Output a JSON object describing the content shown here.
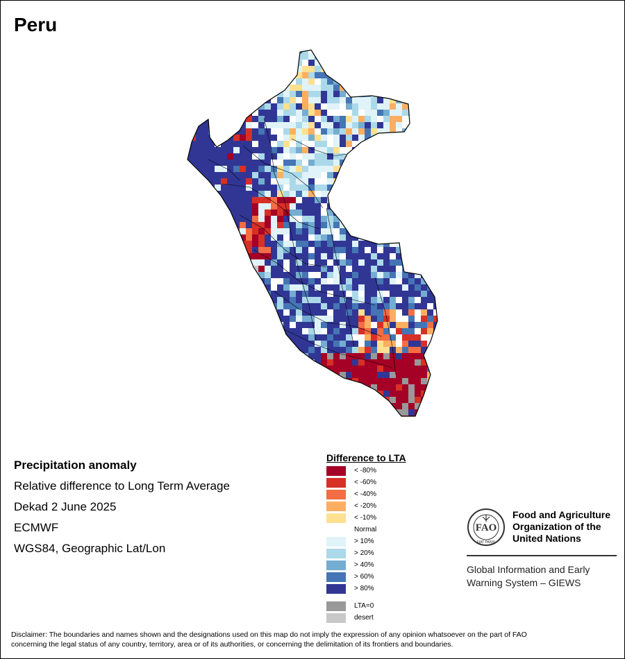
{
  "title": "Peru",
  "info": {
    "heading": "Precipitation anomaly",
    "line1": "Relative difference to Long Term Average",
    "line2": "Dekad 2 June 2025",
    "line3": "ECMWF",
    "line4": "WGS84, Geographic Lat/Lon"
  },
  "legend": {
    "title": "Difference to LTA",
    "items": [
      {
        "label": "< -80%",
        "color": "#a50026"
      },
      {
        "label": "< -60%",
        "color": "#d73027"
      },
      {
        "label": "< -40%",
        "color": "#f46d43"
      },
      {
        "label": "< -20%",
        "color": "#fdae61"
      },
      {
        "label": "< -10%",
        "color": "#fee090"
      },
      {
        "label": "Normal",
        "color": "#ffffff"
      },
      {
        "label": "> 10%",
        "color": "#e0f3f8"
      },
      {
        "label": "> 20%",
        "color": "#abd9e9"
      },
      {
        "label": "> 40%",
        "color": "#74add1"
      },
      {
        "label": "> 60%",
        "color": "#4575b4"
      },
      {
        "label": "> 80%",
        "color": "#313695"
      }
    ],
    "extra": [
      {
        "label": "LTA=0",
        "color": "#999999"
      },
      {
        "label": "desert",
        "color": "#c8c8c8"
      }
    ]
  },
  "fao": {
    "org_line1": "Food and Agriculture",
    "org_line2": "Organization of the",
    "org_line3": "United Nations",
    "giews_line1": "Global Information and Early",
    "giews_line2": "Warning System – GIEWS",
    "logo_text": "FAO",
    "logo_motto": "FIAT PANIS"
  },
  "disclaimer": {
    "line1": "Disclaimer: The boundaries and names shown and the designations used on this map do not imply the expression of any opinion whatsoever on the part of FAO",
    "line2": "concerning the legal status of any country, territory, area or of its authorities, or concerning the delimitation of its frontiers and boundaries."
  }
}
